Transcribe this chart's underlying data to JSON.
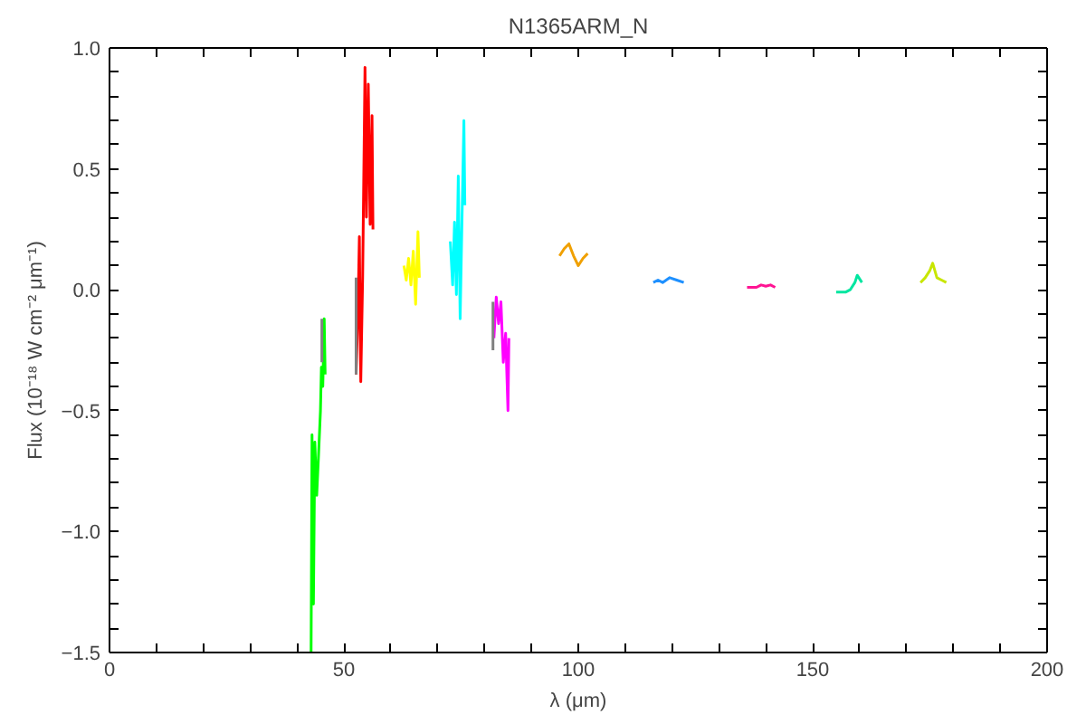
{
  "chart_data": {
    "type": "line",
    "title": "N1365ARM_N",
    "xlabel": "λ (μm)",
    "ylabel": "Flux (10⁻¹⁸ W cm⁻² μm⁻¹)",
    "xlim": [
      0,
      200
    ],
    "ylim": [
      -1.5,
      1.0
    ],
    "xticks": [
      0,
      {
        "value": 10,
        "label": null
      },
      {
        "value": 20,
        "label": null
      },
      {
        "value": 30,
        "label": null
      },
      {
        "value": 40,
        "label": null
      },
      50,
      {
        "value": 60,
        "label": null
      },
      {
        "value": 70,
        "label": null
      },
      {
        "value": 80,
        "label": null
      },
      {
        "value": 90,
        "label": null
      },
      100,
      {
        "value": 110,
        "label": null
      },
      {
        "value": 120,
        "label": null
      },
      {
        "value": 130,
        "label": null
      },
      {
        "value": 140,
        "label": null
      },
      150,
      {
        "value": 160,
        "label": null
      },
      {
        "value": 170,
        "label": null
      },
      {
        "value": 180,
        "label": null
      },
      {
        "value": 190,
        "label": null
      },
      200
    ],
    "yticks": [
      {
        "value": -1.5,
        "label": "−1.5"
      },
      {
        "value": -1.4,
        "label": null
      },
      {
        "value": -1.3,
        "label": null
      },
      {
        "value": -1.2,
        "label": null
      },
      {
        "value": -1.1,
        "label": null
      },
      {
        "value": -1.0,
        "label": "−1.0"
      },
      {
        "value": -0.9,
        "label": null
      },
      {
        "value": -0.8,
        "label": null
      },
      {
        "value": -0.7,
        "label": null
      },
      {
        "value": -0.6,
        "label": null
      },
      {
        "value": -0.5,
        "label": "−0.5"
      },
      {
        "value": -0.4,
        "label": null
      },
      {
        "value": -0.3,
        "label": null
      },
      {
        "value": -0.2,
        "label": null
      },
      {
        "value": -0.1,
        "label": null
      },
      {
        "value": 0,
        "label": "0.0"
      },
      {
        "value": 0.1,
        "label": null
      },
      {
        "value": 0.2,
        "label": null
      },
      {
        "value": 0.3,
        "label": null
      },
      {
        "value": 0.4,
        "label": null
      },
      {
        "value": 0.5,
        "label": "0.5"
      },
      {
        "value": 0.6,
        "label": null
      },
      {
        "value": 0.7,
        "label": null
      },
      {
        "value": 0.8,
        "label": null
      },
      {
        "value": 0.9,
        "label": null
      },
      {
        "value": 1.0,
        "label": "1.0"
      }
    ],
    "grid": false,
    "series": [
      {
        "color": "#00ff00",
        "x": [
          43.0,
          43.2,
          43.5,
          43.8,
          44.2,
          44.6,
          45.0,
          45.2,
          45.5,
          45.8,
          46.0
        ],
        "values": [
          -1.5,
          -0.6,
          -1.3,
          -0.63,
          -0.85,
          -0.68,
          -0.5,
          -0.32,
          -0.4,
          -0.12,
          -0.35
        ]
      },
      {
        "color": "#ff0000",
        "x": [
          52.6,
          53.0,
          53.3,
          53.6,
          54.0,
          54.5,
          54.8,
          55.2,
          55.6,
          56.0,
          56.2
        ],
        "values": [
          -0.35,
          -0.1,
          0.22,
          -0.38,
          0.05,
          0.92,
          0.3,
          0.85,
          0.27,
          0.72,
          0.25
        ]
      },
      {
        "color": "#ffff00",
        "x": [
          62.8,
          63.3,
          63.8,
          64.3,
          64.8,
          65.3,
          65.8,
          66.1
        ],
        "values": [
          0.1,
          0.04,
          0.13,
          0.02,
          0.16,
          -0.06,
          0.24,
          0.05
        ]
      },
      {
        "color": "#00ffff",
        "x": [
          72.7,
          73.2,
          73.6,
          74.0,
          74.4,
          74.8,
          75.2,
          75.6,
          75.8
        ],
        "values": [
          0.2,
          0.02,
          0.28,
          -0.02,
          0.47,
          -0.12,
          0.3,
          0.7,
          0.35
        ]
      },
      {
        "color": "#ff00ff",
        "x": [
          82.0,
          82.5,
          83.0,
          83.5,
          84.0,
          84.5,
          85.0,
          85.2
        ],
        "values": [
          -0.2,
          -0.03,
          -0.14,
          -0.05,
          -0.3,
          -0.18,
          -0.5,
          -0.2
        ]
      },
      {
        "color": "#f0a000",
        "x": [
          96,
          97,
          98,
          99,
          100,
          101,
          102
        ],
        "values": [
          0.14,
          0.17,
          0.19,
          0.14,
          0.1,
          0.13,
          0.15
        ]
      },
      {
        "color": "#1e90ff",
        "x": [
          116,
          117,
          118,
          119.5,
          121,
          122.5
        ],
        "values": [
          0.03,
          0.04,
          0.03,
          0.05,
          0.04,
          0.03
        ]
      },
      {
        "color": "#ff1493",
        "x": [
          136,
          138,
          139,
          140,
          141,
          142
        ],
        "values": [
          0.01,
          0.01,
          0.02,
          0.015,
          0.02,
          0.01
        ]
      },
      {
        "color": "#00e6a0",
        "x": [
          155,
          157,
          158,
          159,
          159.5,
          160.5
        ],
        "values": [
          -0.01,
          -0.01,
          0.0,
          0.03,
          0.06,
          0.03
        ]
      },
      {
        "color": "#c8e600",
        "x": [
          173,
          174,
          175,
          175.6,
          176.5,
          177.5,
          178.5
        ],
        "values": [
          0.03,
          0.05,
          0.08,
          0.11,
          0.05,
          0.04,
          0.03
        ]
      },
      {
        "color": "#808080",
        "x": [
          45.3,
          45.3,
          null,
          52.6,
          52.6,
          null,
          81.8,
          81.8
        ],
        "values": [
          -0.12,
          -0.3,
          null,
          -0.35,
          0.05,
          null,
          -0.05,
          -0.25
        ]
      }
    ]
  }
}
